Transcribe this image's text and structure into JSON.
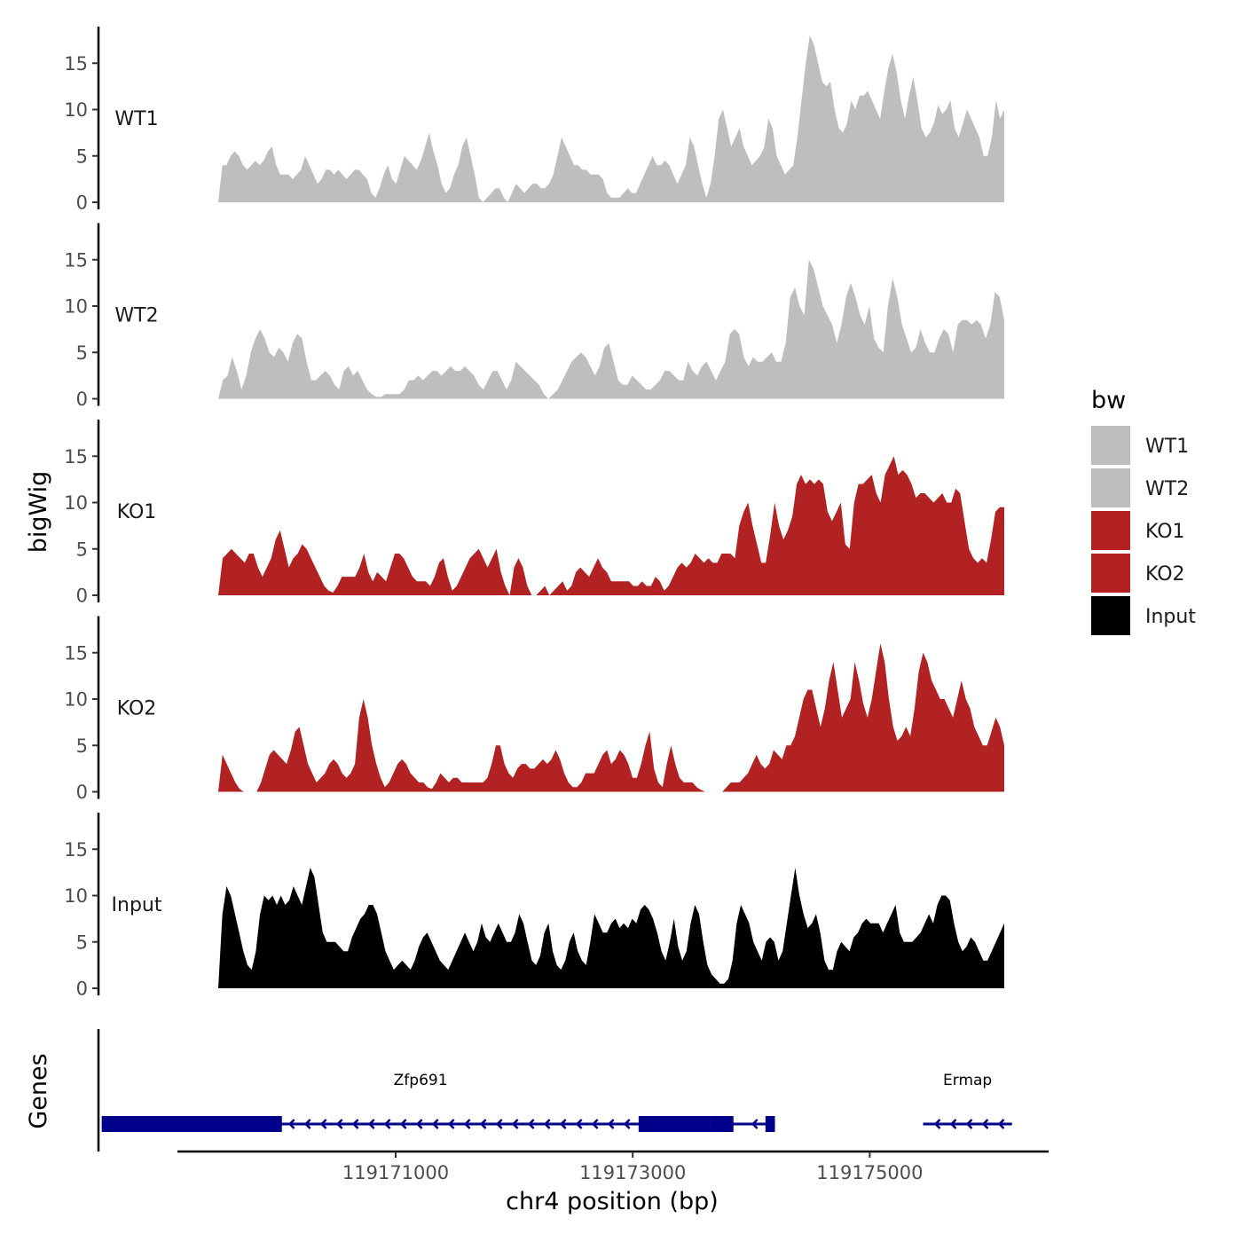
{
  "chart_data": {
    "type": "area",
    "title": "",
    "ylabel": "bigWig",
    "xlabel": "chr4 position (bp)",
    "genes_panel_label": "Genes",
    "xlim": [
      119168500,
      119176300
    ],
    "ylim": [
      0,
      18.5
    ],
    "yticks": [
      0,
      5,
      10,
      15
    ],
    "xticks": [
      119171000,
      119173000,
      119175000
    ],
    "xtick_labels": [
      "119171000",
      "119173000",
      "119175000"
    ],
    "legend": {
      "title": "bw",
      "placement": "right",
      "entries": [
        {
          "label": "WT1",
          "color": "#bebebe"
        },
        {
          "label": "WT2",
          "color": "#bebebe"
        },
        {
          "label": "KO1",
          "color": "#b22222"
        },
        {
          "label": "KO2",
          "color": "#b22222"
        },
        {
          "label": "Input",
          "color": "#000000"
        }
      ]
    },
    "tracks": [
      {
        "name": "WT1",
        "color": "#bebebe",
        "values": [
          0,
          4,
          4,
          5,
          5.5,
          5,
          4,
          3.5,
          4,
          4.5,
          4,
          4.5,
          5.5,
          6,
          4,
          3,
          3,
          3,
          2.5,
          3,
          3.5,
          5,
          4,
          3,
          2,
          2.5,
          3.5,
          3.5,
          3,
          3.5,
          3,
          2.5,
          3,
          3.5,
          3.5,
          3,
          2.5,
          1,
          0.5,
          1.5,
          3,
          4,
          2.5,
          2,
          3.5,
          5,
          4.5,
          4,
          3.5,
          4.5,
          6,
          7.5,
          5.5,
          4,
          2,
          1,
          1.5,
          3,
          4,
          6,
          7,
          5,
          3,
          0.5,
          0,
          0.5,
          1,
          1.5,
          1.5,
          0.5,
          0,
          1,
          2,
          1.5,
          1,
          1.5,
          2,
          2,
          1.5,
          1.5,
          2,
          3,
          5,
          7,
          6,
          5,
          4,
          4,
          3.5,
          3.5,
          3,
          3,
          3,
          2.5,
          1,
          0.5,
          0.5,
          0.5,
          1,
          1.5,
          1,
          1,
          2,
          3,
          4,
          5,
          4,
          4,
          4.5,
          4,
          3,
          2,
          3,
          4,
          7,
          6,
          4,
          2,
          0.5,
          2,
          5,
          9,
          10,
          8,
          6,
          7,
          8,
          6,
          5,
          4,
          4.5,
          5,
          6,
          9,
          8,
          5,
          4,
          3,
          3.5,
          4,
          7,
          11,
          15,
          18,
          17,
          15,
          13,
          12.5,
          13,
          10,
          8,
          7.5,
          8.5,
          11,
          10,
          11.5,
          11.5,
          12,
          11,
          10,
          9,
          12,
          14.5,
          16,
          14,
          11,
          9,
          11.5,
          13.5,
          11,
          8,
          7,
          7.5,
          8.5,
          10.5,
          9.5,
          10,
          11,
          8,
          7,
          8.5,
          10,
          9,
          8,
          7,
          5,
          5,
          7,
          11,
          9,
          10
        ]
      },
      {
        "name": "WT2",
        "color": "#bebebe",
        "values": [
          0,
          2,
          2.5,
          4.5,
          3,
          1,
          2.5,
          5,
          6.5,
          7.5,
          6.5,
          5,
          4.5,
          5.5,
          5,
          4,
          6,
          7,
          6.5,
          4,
          2,
          2,
          2.5,
          3,
          2.5,
          1.5,
          1,
          3,
          3.5,
          2.5,
          3,
          2,
          1,
          0.5,
          0.2,
          0.2,
          0.5,
          0.5,
          0.5,
          0.5,
          1,
          2,
          2,
          2.5,
          2,
          2.5,
          3,
          3,
          2.5,
          3,
          3.5,
          3,
          3,
          3.5,
          3,
          2.5,
          1.5,
          1,
          2,
          3,
          3,
          2,
          1,
          2,
          4,
          3.5,
          3,
          2.5,
          2,
          1.5,
          0.5,
          0,
          0.5,
          1,
          2,
          3,
          4,
          4.5,
          5,
          4.5,
          3.5,
          2.5,
          3.5,
          5.5,
          6,
          4,
          2,
          1.5,
          1.5,
          2.5,
          2,
          1.5,
          1,
          1,
          1.5,
          2,
          3,
          3,
          2.5,
          2,
          2,
          4,
          3,
          2.5,
          3.5,
          4,
          3,
          2,
          3,
          4,
          7,
          7.5,
          7,
          4.5,
          3.5,
          4.5,
          4,
          4,
          4.5,
          5,
          4,
          4,
          6,
          11,
          12,
          10,
          9,
          15,
          14,
          12,
          10,
          9,
          8,
          6,
          8,
          11,
          12.5,
          11,
          9,
          8,
          10,
          6.5,
          5.5,
          5,
          10,
          13,
          11,
          8,
          6.5,
          5,
          5.5,
          7.5,
          6,
          5,
          5,
          6.5,
          7.5,
          7,
          5,
          8,
          8.5,
          8.5,
          8,
          8.5,
          8,
          6.5,
          8,
          11.5,
          11,
          8.5
        ]
      },
      {
        "name": "KO1",
        "color": "#b22222",
        "values": [
          0,
          4,
          4.5,
          5,
          4.5,
          4,
          3.5,
          4.5,
          4.5,
          3,
          2,
          3,
          4,
          6,
          7,
          5,
          3,
          4,
          4.5,
          5.5,
          5,
          4,
          3,
          2,
          1,
          0.5,
          0.3,
          1,
          2,
          2,
          2,
          2,
          3,
          4.5,
          2.5,
          1.5,
          2.5,
          2,
          1.5,
          3,
          4.5,
          4.5,
          4,
          3,
          2,
          1.5,
          1.5,
          1.5,
          1,
          2,
          3.5,
          4,
          2,
          0.5,
          1,
          2,
          3,
          4,
          4.5,
          5,
          4,
          3,
          4,
          5,
          2.5,
          1,
          0,
          3,
          4,
          3,
          1,
          0,
          0,
          0.5,
          1,
          0,
          0.5,
          1,
          1.5,
          0.5,
          1,
          2.5,
          3,
          2.5,
          2,
          3,
          4,
          3,
          2.5,
          1.5,
          1.5,
          1.5,
          1.5,
          1.5,
          1,
          1,
          1.5,
          1,
          1,
          2,
          1.5,
          0.5,
          1,
          2,
          3,
          3.5,
          3,
          3.5,
          4.5,
          4,
          3.5,
          4,
          3.5,
          3.5,
          4.5,
          4.5,
          4.5,
          4,
          7.5,
          9,
          10,
          7.5,
          5.5,
          3.5,
          3.5,
          6.5,
          10,
          7.5,
          6,
          7,
          8.5,
          12,
          13,
          12,
          12.5,
          12,
          12.5,
          12,
          9,
          8,
          9,
          10,
          5.5,
          5,
          10,
          12,
          12,
          12.5,
          13,
          11,
          10,
          13,
          14,
          15,
          13,
          13.5,
          13,
          12,
          10.5,
          11,
          11,
          10.5,
          10,
          10.5,
          11,
          10,
          10,
          11.5,
          11,
          8,
          5,
          4,
          3.5,
          4,
          3.5,
          6,
          9,
          9.5,
          9.5
        ]
      },
      {
        "name": "KO2",
        "color": "#b22222",
        "values": [
          0,
          4,
          3,
          2,
          1,
          0.3,
          0,
          0,
          0,
          0,
          1,
          2.5,
          4,
          4.5,
          4,
          3.5,
          3,
          4.5,
          6.5,
          7,
          5,
          3,
          2,
          1,
          1.5,
          2,
          3,
          3.5,
          3,
          2,
          1.5,
          2,
          3,
          8,
          10,
          8,
          5,
          3,
          1.5,
          0.5,
          1,
          2,
          3,
          3.5,
          3,
          2,
          1.5,
          1,
          1,
          0.5,
          0.3,
          1,
          2,
          1.5,
          1,
          1.5,
          1.5,
          1,
          1,
          1,
          1,
          1,
          1,
          1.5,
          3,
          5,
          5,
          3,
          2,
          1.5,
          2.5,
          3,
          3,
          2.5,
          2.5,
          3,
          3.5,
          3,
          3.5,
          4.5,
          3.5,
          2,
          1,
          0.5,
          0.5,
          1,
          2,
          2,
          2,
          3,
          4,
          4.5,
          3,
          3.5,
          4.5,
          4,
          3,
          1.5,
          1.5,
          3,
          5,
          6.5,
          2.5,
          1,
          0.5,
          3,
          5,
          3,
          1.5,
          1,
          1,
          1,
          0.5,
          0.2,
          0,
          0,
          0,
          0,
          0,
          0.5,
          1,
          1,
          1,
          1.5,
          2,
          3,
          4,
          3,
          2.5,
          3,
          4.5,
          4,
          3.5,
          5,
          5,
          6,
          8,
          10,
          11,
          11,
          9,
          7,
          9,
          12,
          14,
          11,
          8,
          9,
          10,
          14,
          12,
          9.5,
          8,
          10,
          13,
          16,
          14,
          10,
          7,
          5.5,
          6,
          7,
          6,
          9,
          13,
          15,
          14,
          12,
          11,
          10,
          10,
          9,
          8,
          10,
          12,
          10,
          9,
          7,
          6,
          5,
          5,
          6.5,
          8,
          7,
          5
        ]
      },
      {
        "name": "Input",
        "color": "#000000",
        "values": [
          0,
          8,
          11,
          10,
          8,
          6,
          4,
          2.5,
          2,
          4,
          8,
          10,
          9.5,
          10,
          9,
          10,
          9,
          9.5,
          11,
          10,
          9,
          11,
          13,
          12,
          9,
          6,
          5,
          5,
          5,
          4.5,
          4,
          4,
          5.5,
          6.5,
          7.5,
          8,
          9,
          9,
          8,
          6,
          4,
          3,
          2,
          2.5,
          3,
          2.5,
          2,
          3,
          4.5,
          5.5,
          6,
          5,
          4,
          3,
          2.5,
          2,
          3,
          4,
          5,
          6,
          5,
          4,
          5,
          7,
          5.5,
          5,
          6,
          7,
          6,
          5,
          5,
          6,
          8,
          7,
          5,
          3,
          2.5,
          3.5,
          6,
          7,
          4,
          2.5,
          2,
          3,
          5,
          6,
          4,
          3,
          2.5,
          5,
          8,
          7,
          6,
          6,
          7,
          7.5,
          6.5,
          7,
          6.5,
          7.5,
          7,
          8.5,
          9,
          8.5,
          7.5,
          6,
          4,
          3,
          5,
          7.5,
          4.5,
          3,
          4,
          7,
          9,
          8,
          5,
          2.5,
          1.5,
          1,
          0.5,
          0.5,
          1,
          3,
          7,
          9,
          8,
          7,
          5,
          4,
          3,
          5,
          5.5,
          5,
          3,
          4,
          7,
          10,
          13,
          10,
          8,
          6.5,
          7,
          8,
          6,
          3,
          2,
          2,
          4,
          5,
          4.5,
          4,
          5.5,
          6,
          7,
          7.5,
          7,
          7,
          7,
          6,
          7,
          8,
          9,
          6,
          5,
          5,
          5,
          5.5,
          6,
          7,
          8,
          7,
          9,
          10,
          10,
          9.5,
          7,
          5,
          4,
          4.5,
          5.5,
          5,
          4,
          3,
          3,
          4,
          5,
          6,
          7
        ]
      }
    ],
    "genes": [
      {
        "name": "Zfp691",
        "start": 119168520,
        "end": 119174200,
        "strand": "-",
        "exons": [
          [
            119168520,
            119170040
          ],
          [
            119173050,
            119173650
          ],
          [
            119173650,
            119173850
          ],
          [
            119174120,
            119174200
          ]
        ]
      },
      {
        "name": "Ermap",
        "start": 119175450,
        "end": 119176200,
        "strand": "-",
        "exons": []
      }
    ]
  }
}
